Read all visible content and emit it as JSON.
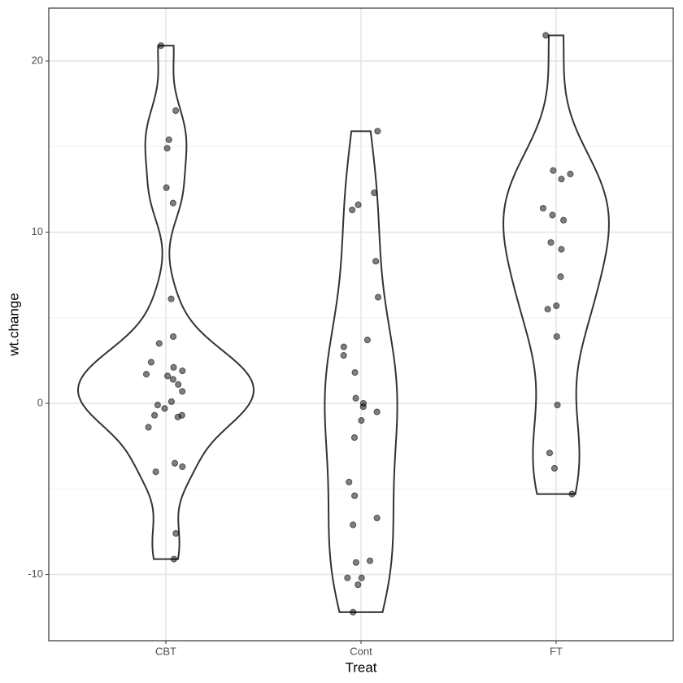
{
  "chart_data": {
    "type": "violin",
    "x_label": "Treat",
    "y_label": "wt.change",
    "categories": [
      "CBT",
      "Cont",
      "FT"
    ],
    "values": [
      [
        1.7,
        0.7,
        -0.1,
        -0.7,
        -3.5,
        14.9,
        3.5,
        17.1,
        -7.6,
        1.6,
        11.7,
        6.1,
        1.1,
        -4.0,
        20.9,
        -9.1,
        2.1,
        -1.4,
        1.4,
        -0.3,
        -3.7,
        -0.8,
        2.4,
        12.6,
        1.9,
        3.9,
        0.1,
        15.4,
        -0.7
      ],
      [
        -0.5,
        -9.3,
        -5.4,
        12.3,
        -2.0,
        -10.2,
        -12.2,
        11.6,
        -7.1,
        6.2,
        -0.2,
        -9.2,
        8.3,
        3.3,
        11.3,
        0.0,
        -1.0,
        -10.6,
        -4.6,
        -6.7,
        2.8,
        0.3,
        1.8,
        3.7,
        15.9,
        -10.2
      ],
      [
        11.4,
        11.0,
        5.5,
        9.4,
        13.6,
        -2.9,
        -0.1,
        7.4,
        21.5,
        -5.3,
        -3.8,
        13.4,
        13.1,
        9.0,
        3.9,
        5.7,
        10.7
      ]
    ],
    "ylim": [
      -13.87,
      23.09
    ],
    "yticks": [
      -10,
      0,
      10,
      20
    ],
    "minor_yticks": [
      -5,
      5,
      15
    ],
    "grid": true,
    "outline_color": "#333333",
    "point_color": "#000000"
  }
}
